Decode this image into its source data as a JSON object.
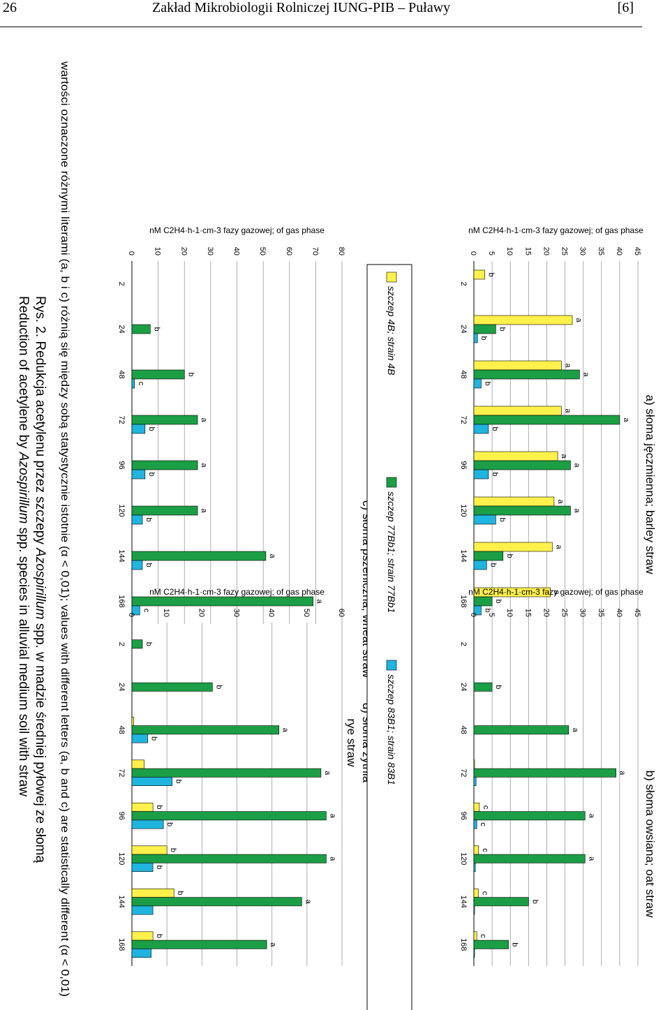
{
  "header": {
    "page_number": "26",
    "title": "Zakład Mikrobiologii Rolniczej IUNG-PIB – Puławy",
    "ref": "[6]"
  },
  "colors": {
    "strain_4B": "#fef14b",
    "strain_77Bb1": "#1b9e45",
    "strain_83B1": "#20b4df"
  },
  "legend": [
    {
      "label": "szczep 4B; strain 4B",
      "color": "#fef14b"
    },
    {
      "label": "szczep 77Bb1; strain 77Bb1",
      "color": "#1b9e45"
    },
    {
      "label": "szczep 83B1; strain 83B1",
      "color": "#20b4df"
    }
  ],
  "chart_data": [
    {
      "type": "bar",
      "title": "a) słoma jęczmienna; barley straw",
      "ylabel": "nM C2H4·h-1·cm-3 fazy gazowej; of gas phase",
      "ylim": [
        0,
        45
      ],
      "yticks": [
        "0",
        "5",
        "10",
        "15",
        "20",
        "25",
        "30",
        "35",
        "40",
        "45"
      ],
      "categories": [
        "2",
        "24",
        "48",
        "72",
        "96",
        "120",
        "144",
        "168"
      ],
      "series": [
        {
          "name": "szczep 4B; strain 4B",
          "values": [
            3,
            27,
            24,
            24,
            23,
            22,
            21.5,
            21
          ],
          "letters": [
            "b",
            "a",
            "a",
            "a",
            "a",
            "a",
            "a",
            "a"
          ]
        },
        {
          "name": "szczep 77Bb1; strain 77Bb1",
          "values": [
            0,
            6,
            29,
            40,
            26.5,
            26.5,
            8,
            5
          ],
          "letters": [
            "",
            "b",
            "a",
            "a",
            "a",
            "a",
            "b",
            "b"
          ]
        },
        {
          "name": "szczep 83B1; strain 83B1",
          "values": [
            0,
            1,
            2,
            4,
            4,
            6,
            3.5,
            2
          ],
          "letters": [
            "",
            "b",
            "b",
            "b",
            "b",
            "b",
            "b",
            "b"
          ]
        }
      ]
    },
    {
      "type": "bar",
      "title": "b) słoma owsiana; oat straw",
      "ylabel": "nM C2H4·h-1·cm-3 fazy gazowej; of gas phase",
      "ylim": [
        0,
        45
      ],
      "yticks": [
        "0",
        "5",
        "10",
        "15",
        "20",
        "25",
        "30",
        "35",
        "40",
        "45"
      ],
      "categories": [
        "2",
        "24",
        "48",
        "72",
        "96",
        "120",
        "144",
        "168"
      ],
      "series": [
        {
          "name": "szczep 4B; strain 4B",
          "values": [
            0,
            0,
            0,
            0.2,
            1.5,
            1.3,
            1.2,
            0.8
          ],
          "letters": [
            "",
            "",
            "",
            "",
            "c",
            "c",
            "c",
            "c"
          ]
        },
        {
          "name": "szczep 77Bb1; strain 77Bb1",
          "values": [
            0,
            5,
            26,
            39,
            30.5,
            30.5,
            15,
            9.5
          ],
          "letters": [
            "",
            "b",
            "a",
            "a",
            "a",
            "a",
            "b",
            "b"
          ]
        },
        {
          "name": "szczep 83B1; strain 83B1",
          "values": [
            0,
            0,
            0,
            0.6,
            0.8,
            0.4,
            0.2,
            0.2
          ],
          "letters": [
            "",
            "",
            "",
            "",
            "c",
            "",
            "",
            ""
          ]
        }
      ]
    },
    {
      "type": "bar",
      "title": "c) słoma pszeniczna; wheat straw",
      "ylabel": "nM C2H4·h-1·cm-3 fazy gazowej; of gas phase",
      "ylim": [
        0,
        80
      ],
      "yticks": [
        "0",
        "10",
        "20",
        "30",
        "40",
        "50",
        "60",
        "70",
        "80"
      ],
      "categories": [
        "2",
        "24",
        "48",
        "72",
        "96",
        "120",
        "144",
        "168"
      ],
      "series": [
        {
          "name": "szczep 4B; strain 4B",
          "values": [
            0,
            0,
            0,
            0,
            0,
            0,
            0,
            0
          ],
          "letters": [
            "",
            "",
            "",
            "",
            "",
            "",
            "",
            ""
          ]
        },
        {
          "name": "szczep 77Bb1; strain 77Bb1",
          "values": [
            0,
            7,
            20,
            25,
            25,
            25,
            51,
            69
          ],
          "letters": [
            "",
            "b",
            "b",
            "a",
            "a",
            "a",
            "a",
            "a"
          ]
        },
        {
          "name": "szczep 83B1; strain 83B1",
          "values": [
            0,
            0,
            1,
            5,
            5,
            4,
            4,
            3
          ],
          "letters": [
            "",
            "",
            "c",
            "b",
            "b",
            "b",
            "b",
            "c"
          ]
        }
      ]
    },
    {
      "type": "bar",
      "title": "d) słoma żytnia rye straw",
      "title_lines": [
        "d) słoma żytnia",
        "rye straw"
      ],
      "ylabel": "nM C2H4·h-1·cm-3 fazy gazowej; of gas phase",
      "ylim": [
        0,
        60
      ],
      "yticks": [
        "0",
        "10",
        "20",
        "30",
        "40",
        "50",
        "60"
      ],
      "categories": [
        "2",
        "24",
        "48",
        "72",
        "96",
        "120",
        "144",
        "168"
      ],
      "series": [
        {
          "name": "szczep 4B; strain 4B",
          "values": [
            0,
            0,
            0.5,
            3.5,
            6,
            10,
            12,
            6
          ],
          "letters": [
            "",
            "",
            "",
            "",
            "b",
            "b",
            "b",
            "b"
          ]
        },
        {
          "name": "szczep 77Bb1; strain 77Bb1",
          "values": [
            3,
            23,
            42,
            54,
            55.5,
            55.5,
            48.5,
            38.5
          ],
          "letters": [
            "b",
            "b",
            "a",
            "a",
            "a",
            "a",
            "a",
            "a"
          ]
        },
        {
          "name": "szczep 83B1; strain 83B1",
          "values": [
            0,
            0,
            4.5,
            11.5,
            9,
            6,
            6,
            5.5
          ],
          "letters": [
            "",
            "",
            "b",
            "b",
            "b",
            "b",
            "",
            ""
          ]
        }
      ]
    }
  ],
  "footnote": "wartości oznaczone różnymi literami (a, b i c) różnią się między sobą statystycznie istotnie (α < 0,01); values with different letters (a, b and c) are statistically different (α < 0,01)",
  "caption_pl_prefix": "Rys. 2. Redukcja acetylenu przez szczepy ",
  "caption_pl_italic": "Azospirillum",
  "caption_pl_suffix": " spp. w madzie średniej pyłowej ze słomą",
  "caption_en_prefix": "Reduction of acetylene by ",
  "caption_en_italic": "Azospirillum",
  "caption_en_suffix": " spp. species in alluvial medium soil with straw"
}
